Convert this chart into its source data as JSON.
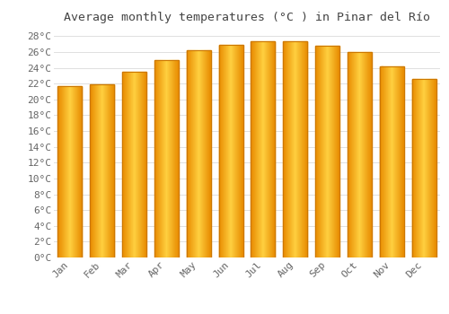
{
  "title": "Average monthly temperatures (°C ) in Pinar del Río",
  "months": [
    "Jan",
    "Feb",
    "Mar",
    "Apr",
    "May",
    "Jun",
    "Jul",
    "Aug",
    "Sep",
    "Oct",
    "Nov",
    "Dec"
  ],
  "values": [
    21.7,
    21.9,
    23.5,
    25.0,
    26.2,
    26.9,
    27.3,
    27.4,
    26.8,
    26.0,
    24.2,
    22.6
  ],
  "bar_color_center": "#FFCC33",
  "bar_color_edge": "#E88B00",
  "bar_color_mid": "#FFB020",
  "ylim": [
    0,
    29
  ],
  "ytick_step": 2,
  "background_color": "#ffffff",
  "plot_bg_color": "#ffffff",
  "grid_color": "#e0e0e0",
  "title_fontsize": 9.5,
  "tick_fontsize": 8,
  "bar_width": 0.75,
  "title_color": "#444444",
  "tick_color": "#666666"
}
